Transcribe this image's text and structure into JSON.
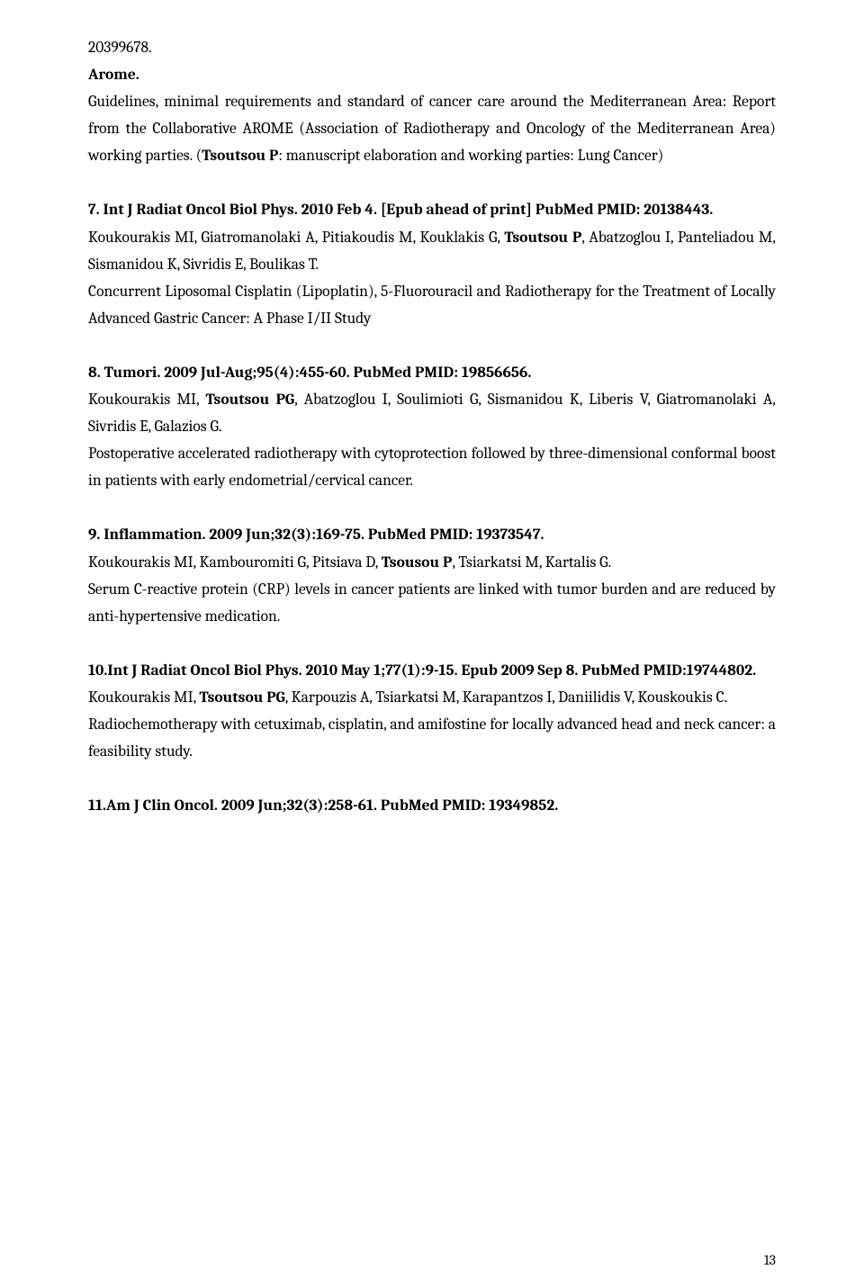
{
  "top": {
    "pmid": "20399678.",
    "arome": "Arome.",
    "desc_pre": "Guidelines, minimal requirements and standard of cancer care around the Mediterranean Area: Report from the Collaborative AROME (Association of Radiotherapy and Oncology of the Mediterranean Area) working parties. (",
    "tsoutsou": "Tsoutsou P",
    "desc_post": ": manuscript elaboration and working parties: Lung Cancer)"
  },
  "r7": {
    "title": "7.  Int J Radiat Oncol Biol Phys. 2010 Feb 4. [Epub ahead of print] PubMed PMID: 20138443.",
    "auth_pre": "Koukourakis MI, Giatromanolaki A, Pitiakoudis M, Kouklakis G, ",
    "tsoutsou": "Tsoutsou P",
    "auth_post": ", Abatzoglou I, Panteliadou M, Sismanidou K, Sivridis E, Boulikas T.",
    "study": "Concurrent Liposomal Cisplatin (Lipoplatin), 5-Fluorouracil and Radiotherapy for the Treatment of Locally Advanced Gastric Cancer: A Phase I/II Study"
  },
  "r8": {
    "title": "8.  Tumori. 2009 Jul-Aug;95(4):455-60. PubMed PMID: 19856656.",
    "auth_pre": "Koukourakis MI, ",
    "tsoutsou": "Tsoutsou PG",
    "auth_post": ", Abatzoglou I, Soulimioti G, Sismanidou K, Liberis V, Giatromanolaki A, Sivridis E, Galazios G.",
    "study": "Postoperative accelerated radiotherapy with cytoprotection followed by three-dimensional conformal boost in patients with early endometrial/cervical cancer."
  },
  "r9": {
    "title": "9.  Inflammation. 2009 Jun;32(3):169-75. PubMed PMID: 19373547.",
    "auth_pre": "Koukourakis MI, Kambouromiti G, Pitsiava D, ",
    "tsoutsou": "Tsousou P",
    "auth_post": ", Tsiarkatsi M, Kartalis G.",
    "study": "Serum C-reactive protein (CRP) levels in cancer patients are linked with tumor burden and are reduced by anti-hypertensive medication."
  },
  "r10": {
    "title": "10.Int J  Radiat Oncol Biol Phys. 2010 May 1;77(1):9-15. Epub 2009 Sep 8. PubMed PMID:19744802.",
    "auth_pre": "Koukourakis MI, ",
    "tsoutsou": "Tsoutsou PG",
    "auth_post": ", Karpouzis A, Tsiarkatsi M, Karapantzos I, Daniilidis V, Kouskoukis C.",
    "study": "Radiochemotherapy with cetuximab, cisplatin, and amifostine for locally advanced head and neck cancer: a feasibility study."
  },
  "r11": {
    "title": "11.Am J Clin Oncol. 2009 Jun;32(3):258-61. PubMed PMID: 19349852."
  },
  "page_number": "13"
}
